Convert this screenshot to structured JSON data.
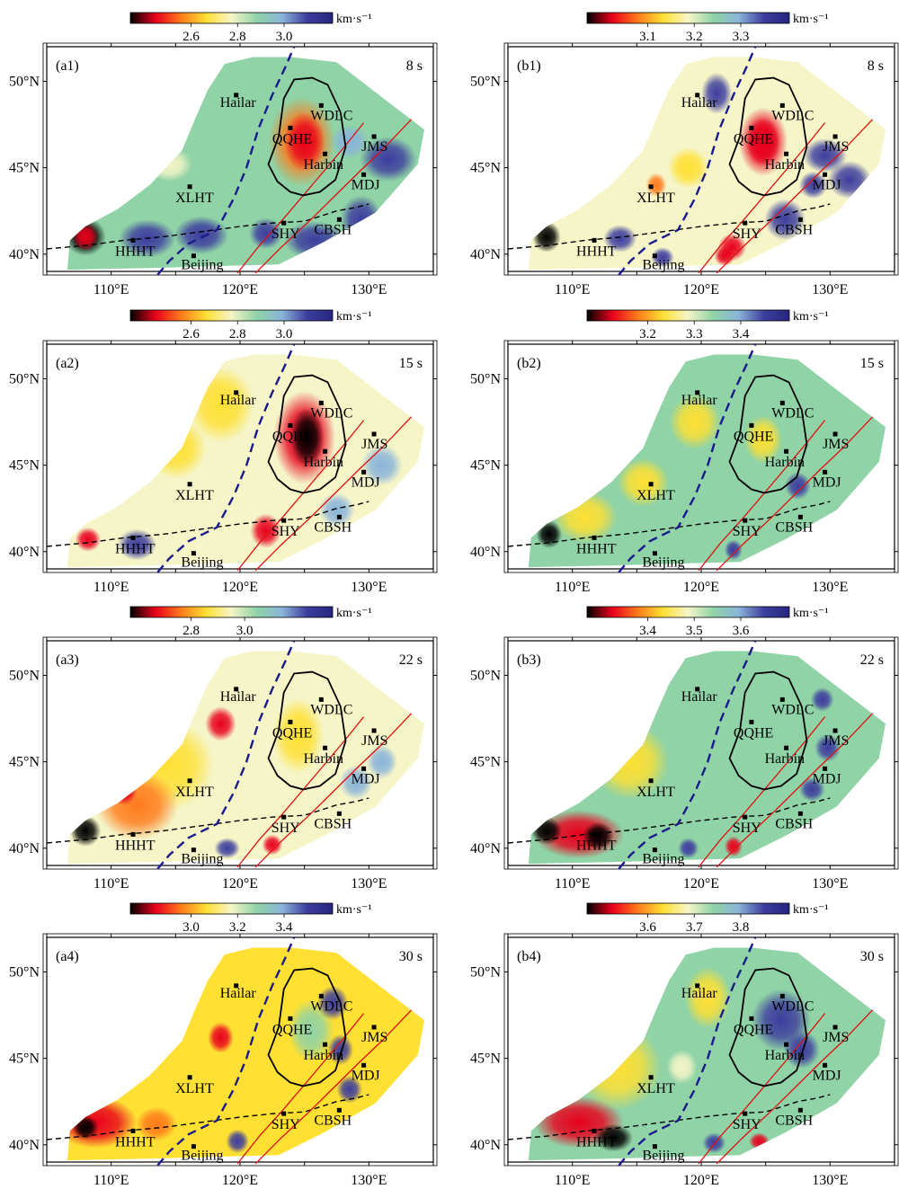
{
  "figure": {
    "unit": "km·s⁻¹",
    "stations": [
      "Hailar",
      "WDLC",
      "QQHE",
      "Harbin",
      "JMS",
      "MDJ",
      "XLHT",
      "SHY",
      "CBSH",
      "HHHT",
      "Beijing"
    ],
    "lat_ticks": [
      "50°N",
      "45°N",
      "40°N"
    ],
    "lon_ticks": [
      "110°E",
      "120°E",
      "130°E"
    ],
    "colors": {
      "scale": [
        "#000000",
        "#e8001c",
        "#ff7a1a",
        "#ffe033",
        "#f5f5c8",
        "#8fd3a6",
        "#8ab4d9",
        "#3d3d9e",
        "#262680"
      ],
      "fault": "#e01010",
      "boundary": "#1a1a8c",
      "block": "#000000"
    }
  },
  "chart_data": [
    {
      "type": "heatmap",
      "label": "(a1)",
      "period": "8 s",
      "ticks": [
        "2.6",
        "2.8",
        "3.0"
      ],
      "unit": "km·s⁻¹"
    },
    {
      "type": "heatmap",
      "label": "(b1)",
      "period": "8 s",
      "ticks": [
        "3.1",
        "3.2",
        "3.3"
      ],
      "unit": "km·s⁻¹"
    },
    {
      "type": "heatmap",
      "label": "(a2)",
      "period": "15 s",
      "ticks": [
        "2.6",
        "2.8",
        "3.0"
      ],
      "unit": "km·s⁻¹"
    },
    {
      "type": "heatmap",
      "label": "(b2)",
      "period": "15 s",
      "ticks": [
        "3.2",
        "3.3",
        "3.4"
      ],
      "unit": "km·s⁻¹"
    },
    {
      "type": "heatmap",
      "label": "(a3)",
      "period": "22 s",
      "ticks": [
        "2.8",
        "3.0"
      ],
      "unit": "km·s⁻¹"
    },
    {
      "type": "heatmap",
      "label": "(b3)",
      "period": "22 s",
      "ticks": [
        "3.4",
        "3.5",
        "3.6"
      ],
      "unit": "km·s⁻¹"
    },
    {
      "type": "heatmap",
      "label": "(a4)",
      "period": "30 s",
      "ticks": [
        "3.0",
        "3.2",
        "3.4"
      ],
      "unit": "km·s⁻¹"
    },
    {
      "type": "heatmap",
      "label": "(b4)",
      "period": "30 s",
      "ticks": [
        "3.6",
        "3.7",
        "3.8"
      ],
      "unit": "km·s⁻¹"
    }
  ]
}
